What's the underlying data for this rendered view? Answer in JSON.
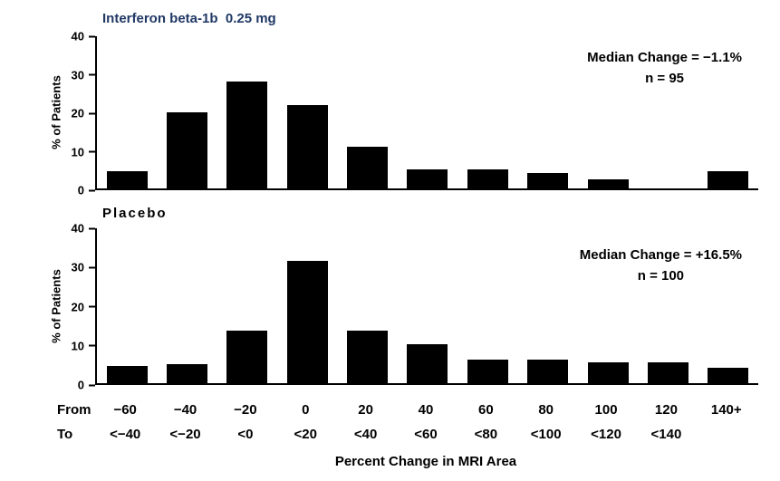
{
  "chart_data": [
    {
      "type": "bar",
      "title": "Interferon beta-1b  0.25 mg",
      "ylabel": "% of Patients",
      "ylim": [
        0,
        40
      ],
      "yticks": [
        0,
        10,
        20,
        30,
        40
      ],
      "bin_from": [
        "−60",
        "−40",
        "−20",
        "0",
        "20",
        "40",
        "60",
        "80",
        "100",
        "120",
        "140+"
      ],
      "bin_to": [
        "<−40",
        "<−20",
        "<0",
        "<20",
        "<40",
        "<60",
        "<80",
        "<100",
        "<120",
        "<140",
        ""
      ],
      "values": [
        4.5,
        20,
        28,
        22,
        11,
        5,
        5,
        4,
        2.5,
        0,
        4.5
      ],
      "bar_color": "#000000",
      "annotation": {
        "line1": "Median Change = −1.1%",
        "line2": "n = 95"
      }
    },
    {
      "type": "bar",
      "title": "Placebo",
      "ylabel": "% of Patients",
      "ylim": [
        0,
        40
      ],
      "yticks": [
        0,
        10,
        20,
        30,
        40
      ],
      "bin_from": [
        "−60",
        "−40",
        "−20",
        "0",
        "20",
        "40",
        "60",
        "80",
        "100",
        "120",
        "140+"
      ],
      "bin_to": [
        "<−40",
        "<−20",
        "<0",
        "<20",
        "<40",
        "<60",
        "<80",
        "<100",
        "<120",
        "<140",
        ""
      ],
      "values": [
        4.5,
        5,
        13.5,
        31.5,
        13.5,
        10,
        6,
        6,
        5.5,
        5.5,
        4
      ],
      "bar_color": "#000000",
      "annotation": {
        "line1": "Median Change = +16.5%",
        "line2": "n = 100"
      }
    }
  ],
  "xaxis": {
    "from_label": "From",
    "to_label": "To",
    "xlabel": "Percent Change in MRI Area"
  },
  "colors": {
    "title_interferon": "#203864",
    "title_placebo": "#000000",
    "axis": "#000000",
    "bar": "#000000"
  }
}
